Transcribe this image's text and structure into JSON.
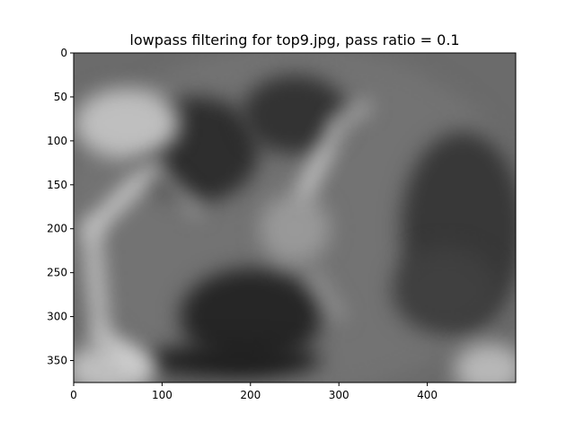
{
  "chart_data": {
    "type": "heatmap",
    "title": "lowpass filtering for top9.jpg, pass ratio = 0.1",
    "colormap": "gray",
    "image_extent": {
      "x": [
        0,
        500
      ],
      "y": [
        0,
        375
      ]
    },
    "y_axis_inverted": true,
    "x_ticks": [
      0,
      100,
      200,
      300,
      400
    ],
    "y_ticks": [
      0,
      50,
      100,
      150,
      200,
      250,
      300,
      350
    ],
    "x_tick_labels": [
      "0",
      "100",
      "200",
      "300",
      "400"
    ],
    "y_tick_labels": [
      "0",
      "50",
      "100",
      "150",
      "200",
      "250",
      "300",
      "350"
    ],
    "grid": false,
    "blobs": [
      {
        "cx": 250,
        "cy": 190,
        "rx": 260,
        "ry": 200,
        "v": 0.45
      },
      {
        "cx": 140,
        "cy": 110,
        "rx": 70,
        "ry": 60,
        "v": 0.18
      },
      {
        "cx": 250,
        "cy": 70,
        "rx": 60,
        "ry": 45,
        "v": 0.2
      },
      {
        "cx": 440,
        "cy": 200,
        "rx": 70,
        "ry": 110,
        "v": 0.22
      },
      {
        "cx": 420,
        "cy": 270,
        "rx": 60,
        "ry": 50,
        "v": 0.25
      },
      {
        "cx": 200,
        "cy": 300,
        "rx": 80,
        "ry": 55,
        "v": 0.15
      },
      {
        "cx": 180,
        "cy": 350,
        "rx": 100,
        "ry": 20,
        "v": 0.12
      },
      {
        "cx": 60,
        "cy": 80,
        "rx": 60,
        "ry": 40,
        "v": 0.75
      },
      {
        "cx": 40,
        "cy": 360,
        "rx": 50,
        "ry": 30,
        "v": 0.75
      },
      {
        "cx": 470,
        "cy": 360,
        "rx": 40,
        "ry": 30,
        "v": 0.72
      },
      {
        "cx": 250,
        "cy": 200,
        "rx": 40,
        "ry": 40,
        "v": 0.6
      }
    ],
    "ridges": [
      {
        "x1": 20,
        "y1": 200,
        "x2": 90,
        "y2": 130,
        "w": 14,
        "v": 0.92
      },
      {
        "x1": 20,
        "y1": 200,
        "x2": 30,
        "y2": 320,
        "w": 14,
        "v": 0.88
      },
      {
        "x1": 30,
        "y1": 320,
        "x2": 80,
        "y2": 360,
        "w": 12,
        "v": 0.9
      },
      {
        "x1": 90,
        "y1": 130,
        "x2": 140,
        "y2": 180,
        "w": 10,
        "v": 0.72
      },
      {
        "x1": 260,
        "y1": 160,
        "x2": 300,
        "y2": 80,
        "w": 12,
        "v": 0.95
      },
      {
        "x1": 300,
        "y1": 80,
        "x2": 330,
        "y2": 60,
        "w": 10,
        "v": 0.8
      },
      {
        "x1": 270,
        "y1": 250,
        "x2": 300,
        "y2": 300,
        "w": 10,
        "v": 0.65
      }
    ]
  }
}
